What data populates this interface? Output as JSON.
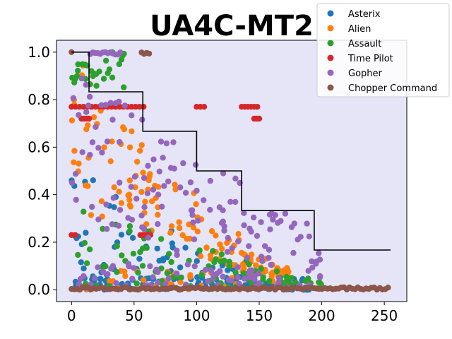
{
  "chart_data": {
    "type": "scatter",
    "title": "UA4C-MT2",
    "xlabel": "",
    "ylabel": "",
    "xlim": [
      -12,
      268
    ],
    "ylim": [
      -0.05,
      1.05
    ],
    "xticks": [
      0,
      50,
      100,
      150,
      200,
      250
    ],
    "yticks": [
      0.0,
      0.2,
      0.4,
      0.6,
      0.8,
      1.0
    ],
    "xtick_labels": [
      "0",
      "50",
      "100",
      "150",
      "200",
      "250"
    ],
    "ytick_labels": [
      "0.0",
      "0.2",
      "0.4",
      "0.6",
      "0.8",
      "1.0"
    ],
    "background": "#e5e5f7",
    "grid": false,
    "legend_position": "top-right",
    "series": [
      {
        "name": "Asterix",
        "color": "#1f77b4"
      },
      {
        "name": "Alien",
        "color": "#ff7f0e"
      },
      {
        "name": "Assault",
        "color": "#2ca02c"
      },
      {
        "name": "Time Pilot",
        "color": "#d62728"
      },
      {
        "name": "Gopher",
        "color": "#9467bd"
      },
      {
        "name": "Chopper Command",
        "color": "#8c564b"
      }
    ],
    "reference_line": {
      "name": "step",
      "color": "#000000",
      "x": [
        0,
        14,
        14,
        57,
        57,
        100,
        100,
        136,
        136,
        194,
        194,
        255
      ],
      "y": [
        1.0,
        1.0,
        0.833,
        0.833,
        0.667,
        0.667,
        0.5,
        0.5,
        0.333,
        0.333,
        0.167,
        0.167
      ]
    }
  }
}
